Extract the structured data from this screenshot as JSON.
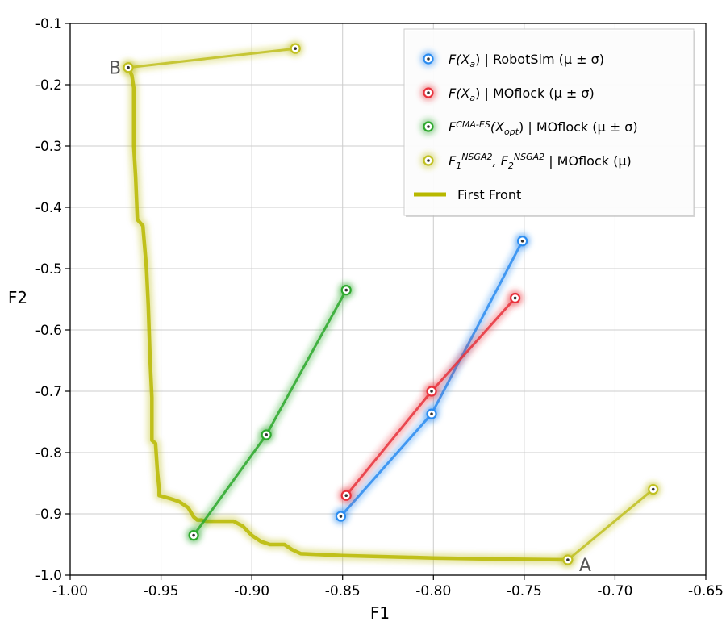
{
  "chart_data": {
    "type": "line",
    "xlabel": "F1",
    "ylabel": "F2",
    "xlim": [
      -1.0,
      -0.65
    ],
    "ylim": [
      -1.0,
      -0.1
    ],
    "xticks": [
      -1.0,
      -0.95,
      -0.9,
      -0.85,
      -0.8,
      -0.75,
      -0.7,
      -0.65
    ],
    "xtick_labels": [
      "-1.00",
      "-0.95",
      "-0.90",
      "-0.85",
      "-0.80",
      "-0.75",
      "-0.70",
      "-0.65"
    ],
    "yticks": [
      -1.0,
      -0.9,
      -0.8,
      -0.7,
      -0.6,
      -0.5,
      -0.4,
      -0.3,
      -0.2,
      -0.1
    ],
    "ytick_labels": [
      "-1.0",
      "-0.9",
      "-0.8",
      "-0.7",
      "-0.6",
      "-0.5",
      "-0.4",
      "-0.3",
      "-0.2",
      "-0.1"
    ],
    "grid": true,
    "legend_position": "top-right",
    "series": [
      {
        "name": "F(Xa) | RobotSim (μ ± σ)",
        "color": "#2b8cf0",
        "x": [
          -0.851,
          -0.801,
          -0.751
        ],
        "y": [
          -0.904,
          -0.737,
          -0.455
        ]
      },
      {
        "name": "F(Xa) | MOflock (μ ± σ)",
        "color": "#e8323c",
        "x": [
          -0.848,
          -0.801,
          -0.755
        ],
        "y": [
          -0.87,
          -0.7,
          -0.548
        ]
      },
      {
        "name": "F CMA-ES(Xopt) | MOflock (μ ± σ)",
        "color": "#2ca82c",
        "x": [
          -0.932,
          -0.892,
          -0.848
        ],
        "y": [
          -0.935,
          -0.771,
          -0.535
        ]
      },
      {
        "name": "F1 NSGA2, F2 NSGA2 | MOflock (μ)",
        "color": "#c0c020",
        "segments": [
          {
            "x": [
              -0.968,
              -0.876
            ],
            "y": [
              -0.172,
              -0.141
            ]
          },
          {
            "x": [
              -0.726,
              -0.679
            ],
            "y": [
              -0.975,
              -0.86
            ]
          }
        ]
      }
    ],
    "first_front": {
      "name": "First Front",
      "color": "#b8b800",
      "x": [
        -0.968,
        -0.966,
        -0.965,
        -0.965,
        -0.964,
        -0.963,
        -0.96,
        -0.958,
        -0.957,
        -0.956,
        -0.955,
        -0.955,
        -0.953,
        -0.952,
        -0.951,
        -0.951,
        -0.945,
        -0.94,
        -0.935,
        -0.932,
        -0.93,
        -0.928,
        -0.925,
        -0.91,
        -0.905,
        -0.9,
        -0.895,
        -0.89,
        -0.882,
        -0.878,
        -0.873,
        -0.85,
        -0.8,
        -0.76,
        -0.726
      ],
      "y": [
        -0.172,
        -0.185,
        -0.205,
        -0.3,
        -0.35,
        -0.42,
        -0.43,
        -0.5,
        -0.56,
        -0.65,
        -0.71,
        -0.78,
        -0.785,
        -0.83,
        -0.86,
        -0.87,
        -0.875,
        -0.88,
        -0.89,
        -0.905,
        -0.91,
        -0.91,
        -0.912,
        -0.912,
        -0.92,
        -0.935,
        -0.945,
        -0.95,
        -0.95,
        -0.958,
        -0.965,
        -0.968,
        -0.972,
        -0.974,
        -0.975
      ]
    },
    "legend": [
      {
        "main": "F(X",
        "sub": "a",
        "tail": ") | RobotSim  (μ ± σ)",
        "color": "#2b8cf0"
      },
      {
        "main": "F(X",
        "sub": "a",
        "tail": ") | MOflock  (μ ± σ)",
        "color": "#e8323c"
      },
      {
        "main": "F",
        "sup": "CMA-ES",
        "mid": "(X",
        "sub": "opt",
        "tail": ") | MOflock  (μ ± σ)",
        "color": "#2ca82c"
      },
      {
        "main": "F",
        "sub1": "1",
        "sup1": "NSGA2",
        "mid": ", F",
        "sub2": "2",
        "sup2": "NSGA2",
        "tail": " | MOflock (μ)",
        "color": "#c0c020"
      },
      {
        "line_label": "First Front",
        "color": "#b8b800"
      }
    ],
    "annotations": [
      {
        "text": "A",
        "x": -0.726,
        "y": -0.975
      },
      {
        "text": "B",
        "x": -0.968,
        "y": -0.172
      }
    ]
  }
}
